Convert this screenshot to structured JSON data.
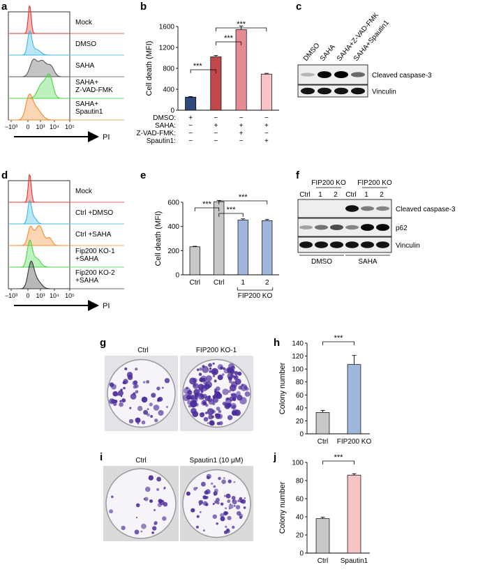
{
  "panels": {
    "a": "a",
    "b": "b",
    "c": "c",
    "d": "d",
    "e": "e",
    "f": "f",
    "g": "g",
    "h": "h",
    "i": "i",
    "j": "j"
  },
  "flow_axis": {
    "ticks": [
      "−10³",
      "0",
      "10³",
      "10⁴",
      "10⁵"
    ],
    "xlabel": "PI"
  },
  "panel_a": {
    "tracks": [
      "Mock",
      "DMSO",
      "SAHA",
      "SAHA+\nZ-VAD-FMK",
      "SAHA+\nSpautin1"
    ],
    "colors": [
      "#e8302a",
      "#3cb8e6",
      "#555555",
      "#45d645",
      "#f08a2c"
    ]
  },
  "panel_d": {
    "tracks": [
      "Mock",
      "Ctrl +DMSO",
      "Ctrl +SAHA",
      "Fip200 KO-1\n+SAHA",
      "Fip200 KO-2\n+SAHA"
    ],
    "colors": [
      "#e8302a",
      "#3cb8e6",
      "#f08a2c",
      "#45d645",
      "#333333"
    ]
  },
  "panel_c": {
    "lanes": [
      "DMSO",
      "SAHA",
      "SAHA+Z-VAD-FMK",
      "SAHA+Spautin1"
    ],
    "bands": [
      "Cleaved caspase-3",
      "Vinculin"
    ],
    "intensities": [
      [
        0.05,
        0.95,
        1.0,
        0.45
      ],
      [
        0.9,
        0.9,
        0.9,
        0.9
      ]
    ]
  },
  "panel_f": {
    "group_headers": [
      "FIP200 KO",
      "FIP200 KO"
    ],
    "lanes": [
      "Ctrl",
      "1",
      "2",
      "Ctrl",
      "1",
      "2"
    ],
    "bands": [
      "Cleaved caspase-3",
      "p62",
      "Vinculin"
    ],
    "treatments": [
      "DMSO",
      "SAHA"
    ],
    "intensities": [
      [
        0.0,
        0.0,
        0.0,
        0.9,
        0.35,
        0.3
      ],
      [
        0.15,
        0.4,
        0.6,
        0.3,
        0.95,
        0.95
      ],
      [
        0.9,
        0.9,
        0.9,
        0.9,
        0.9,
        0.9
      ]
    ]
  },
  "panel_g": {
    "labels": [
      "Ctrl",
      "FIP200 KO-1"
    ]
  },
  "panel_i": {
    "labels": [
      "Ctrl",
      "Spautin1 (10 μM)"
    ]
  },
  "chart_data": [
    {
      "id": "b",
      "type": "bar",
      "ylabel": "Cell death (MFI)",
      "ylim": [
        0,
        1600
      ],
      "yticks": [
        0,
        400,
        800,
        1200,
        1600
      ],
      "values": [
        250,
        1020,
        1540,
        690
      ],
      "errors": [
        10,
        25,
        70,
        15
      ],
      "colors": [
        "#2e4a78",
        "#c0474a",
        "#e88a93",
        "#f7c3c5"
      ],
      "condition_rows": [
        {
          "label": "DMSO:",
          "marks": [
            "+",
            "−",
            "−",
            "−"
          ]
        },
        {
          "label": "SAHA:",
          "marks": [
            "−",
            "+",
            "+",
            "+"
          ]
        },
        {
          "label": "Z-VAD-FMK:",
          "marks": [
            "−",
            "−",
            "+",
            "−"
          ]
        },
        {
          "label": "Spautin1:",
          "marks": [
            "−",
            "−",
            "−",
            "+"
          ]
        }
      ],
      "significance": [
        {
          "from": 0,
          "to": 1,
          "label": "***"
        },
        {
          "from": 1,
          "to": 2,
          "label": "***"
        },
        {
          "from": 1,
          "to": 3,
          "label": "***"
        }
      ]
    },
    {
      "id": "e",
      "type": "bar",
      "ylabel": "Cell death (MFI)",
      "ylim": [
        0,
        600
      ],
      "yticks": [
        0,
        200,
        400,
        600
      ],
      "categories": [
        "Ctrl",
        "Ctrl",
        "1",
        "2"
      ],
      "group_label": "FIP200 KO",
      "values": [
        232,
        605,
        453,
        448
      ],
      "errors": [
        4,
        10,
        10,
        10
      ],
      "colors": [
        "#c8c8c8",
        "#c8c8c8",
        "#9fb6dd",
        "#9fb6dd"
      ],
      "significance": [
        {
          "from": 0,
          "to": 1,
          "label": "***"
        },
        {
          "from": 1,
          "to": 2,
          "label": "***"
        },
        {
          "from": 1,
          "to": 3,
          "label": "***"
        }
      ]
    },
    {
      "id": "h",
      "type": "bar",
      "ylabel": "Colony number",
      "ylim": [
        0,
        140
      ],
      "yticks": [
        0,
        20,
        40,
        60,
        80,
        100,
        120,
        140
      ],
      "categories": [
        "Ctrl",
        "FIP200 KO"
      ],
      "values": [
        33,
        107
      ],
      "errors": [
        3,
        14
      ],
      "colors": [
        "#c8c8c8",
        "#9fb6dd"
      ],
      "significance": [
        {
          "from": 0,
          "to": 1,
          "label": "***"
        }
      ]
    },
    {
      "id": "j",
      "type": "bar",
      "ylabel": "Colony number",
      "ylim": [
        0,
        100
      ],
      "yticks": [
        0,
        20,
        40,
        60,
        80,
        100
      ],
      "categories": [
        "Ctrl",
        "Spautin1"
      ],
      "values": [
        38,
        86
      ],
      "errors": [
        1.5,
        1.5
      ],
      "colors": [
        "#c8c8c8",
        "#f7c3c5"
      ],
      "significance": [
        {
          "from": 0,
          "to": 1,
          "label": "***"
        }
      ]
    }
  ]
}
